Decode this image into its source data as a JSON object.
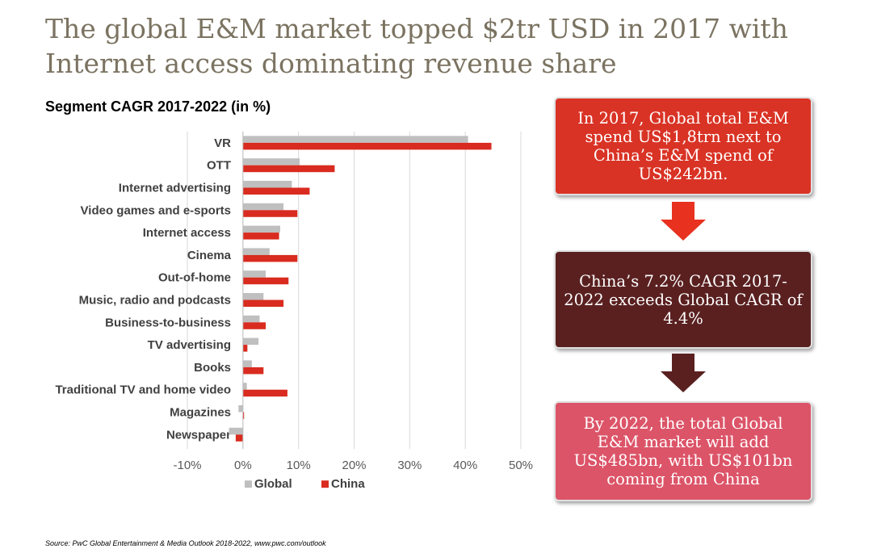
{
  "title": "The global E&M market topped $2tr USD in 2017 with Internet access dominating revenue share",
  "chart_data": {
    "type": "bar",
    "orientation": "horizontal",
    "title": "Segment CAGR 2017-2022 (in %)",
    "categories": [
      "VR",
      "OTT",
      "Internet advertising",
      "Video games and e-sports",
      "Internet access",
      "Cinema",
      "Out-of-home",
      "Music, radio and podcasts",
      "Business-to-business",
      "TV advertising",
      "Books",
      "Traditional TV and home video",
      "Magazines",
      "Newspaper"
    ],
    "series": [
      {
        "name": "Global",
        "color": "#bfbfbf",
        "values": [
          40.5,
          10.2,
          8.8,
          7.3,
          6.7,
          4.8,
          4.1,
          3.7,
          3.0,
          2.8,
          1.6,
          0.7,
          -0.8,
          -2.5
        ]
      },
      {
        "name": "China",
        "color": "#d92b1f",
        "values": [
          44.7,
          16.5,
          12.0,
          9.8,
          6.5,
          9.8,
          8.2,
          7.3,
          4.1,
          0.8,
          3.7,
          8.0,
          0.2,
          -1.3
        ]
      }
    ],
    "xlim": [
      -10,
      50
    ],
    "xticks": [
      "-10%",
      "0%",
      "10%",
      "20%",
      "30%",
      "40%",
      "50%"
    ],
    "grid": true,
    "legend": "bottom"
  },
  "callouts": [
    {
      "text": "In 2017, Global total E&M spend US$1,8trn next to China’s E&M spend of US$242bn.",
      "color": "#d93325"
    },
    {
      "text": "China’s 7.2% CAGR 2017-2022 exceeds Global CAGR of 4.4%",
      "color": "#5a2020"
    },
    {
      "text": "By 2022, the total Global E&M market will add US$485bn, with US$101bn coming from China",
      "color": "#dc5468"
    }
  ],
  "arrows": [
    {
      "color": "#e8311f"
    },
    {
      "color": "#5a2020"
    }
  ],
  "source": "Source:  PwC Global Entertainment & Media Outlook 2018-2022, www.pwc.com/outlook"
}
